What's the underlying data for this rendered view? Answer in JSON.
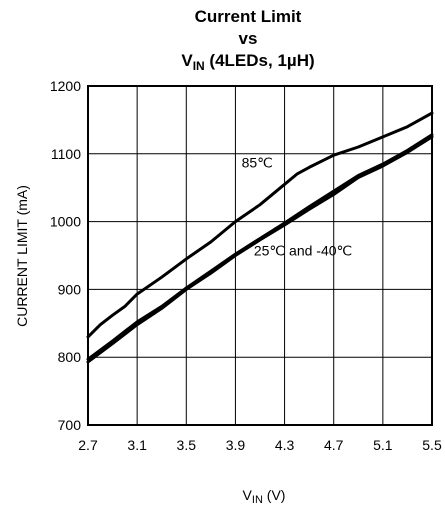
{
  "chart_data": {
    "type": "line",
    "title_line1": "Current Limit",
    "title_line2": "vs",
    "title_line3_main": "V",
    "title_line3_sub": "IN",
    "title_line3_rest": " (4LEDs, 1µH)",
    "xlabel_main": "V",
    "xlabel_sub": "IN",
    "xlabel_rest": " (V)",
    "ylabel": "CURRENT LIMIT (mA)",
    "xlim": [
      2.7,
      5.5
    ],
    "ylim": [
      700,
      1200
    ],
    "x_ticks": [
      "2.7",
      "3.1",
      "3.5",
      "3.9",
      "4.3",
      "4.7",
      "5.1",
      "5.5"
    ],
    "y_ticks": [
      "700",
      "800",
      "900",
      "1000",
      "1100",
      "1200"
    ],
    "grid": true,
    "series": [
      {
        "name": "85℃",
        "x": [
          2.7,
          2.8,
          2.9,
          3.0,
          3.1,
          3.3,
          3.5,
          3.7,
          3.9,
          4.1,
          4.3,
          4.4,
          4.5,
          4.7,
          4.9,
          5.1,
          5.3,
          5.5
        ],
        "y": [
          830,
          848,
          862,
          875,
          893,
          918,
          945,
          970,
          1000,
          1025,
          1055,
          1070,
          1080,
          1098,
          1110,
          1125,
          1140,
          1160
        ]
      },
      {
        "name": "25℃",
        "x": [
          2.7,
          2.9,
          3.1,
          3.3,
          3.5,
          3.7,
          3.9,
          4.1,
          4.3,
          4.5,
          4.7,
          4.9,
          5.1,
          5.3,
          5.5
        ],
        "y": [
          797,
          824,
          852,
          875,
          902,
          927,
          952,
          975,
          998,
          1022,
          1045,
          1068,
          1085,
          1105,
          1128
        ]
      },
      {
        "name": "-40℃",
        "x": [
          2.7,
          2.9,
          3.1,
          3.3,
          3.5,
          3.7,
          3.9,
          4.1,
          4.3,
          4.5,
          4.7,
          4.9,
          5.1,
          5.3,
          5.5
        ],
        "y": [
          793,
          820,
          848,
          872,
          900,
          924,
          950,
          973,
          995,
          1018,
          1040,
          1065,
          1082,
          1102,
          1125
        ]
      }
    ],
    "annotations": [
      {
        "text": "85℃",
        "x": 3.95,
        "y": 1080
      },
      {
        "text": "25℃ and -40℃",
        "x": 4.05,
        "y": 950
      }
    ]
  }
}
